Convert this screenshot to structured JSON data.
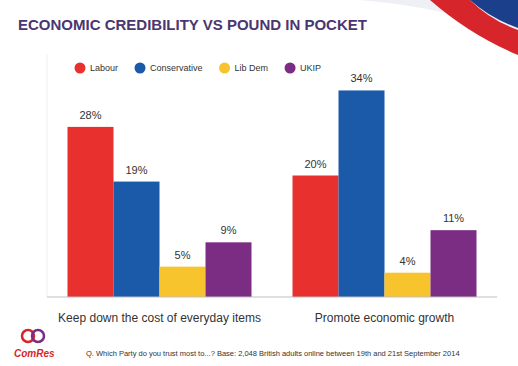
{
  "chart_data": {
    "type": "bar",
    "title": "ECONOMIC CREDIBILITY VS POUND IN POCKET",
    "categories": [
      "Keep down the cost of everyday items",
      "Promote economic growth"
    ],
    "series": [
      {
        "name": "Labour",
        "color": "#e8312f",
        "values": [
          28,
          20
        ],
        "value_labels": [
          "28%",
          "20%"
        ]
      },
      {
        "name": "Conservative",
        "color": "#1b5aa8",
        "values": [
          19,
          34
        ],
        "value_labels": [
          "19%",
          "34%"
        ]
      },
      {
        "name": "Lib Dem",
        "color": "#f8c42e",
        "values": [
          5,
          4
        ],
        "value_labels": [
          "5%",
          "4%"
        ]
      },
      {
        "name": "UKIP",
        "color": "#7b2d84",
        "values": [
          9,
          11
        ],
        "value_labels": [
          "9%",
          "11%"
        ]
      }
    ],
    "ylim": [
      0,
      40
    ],
    "tick_labels": "x",
    "data_labels": true,
    "legend": "top",
    "annotations": [
      "Q. Which Party do you trust most to...?  Base: 2,048 British adults online between 19th and 21st September 2014",
      "ComRes"
    ]
  }
}
